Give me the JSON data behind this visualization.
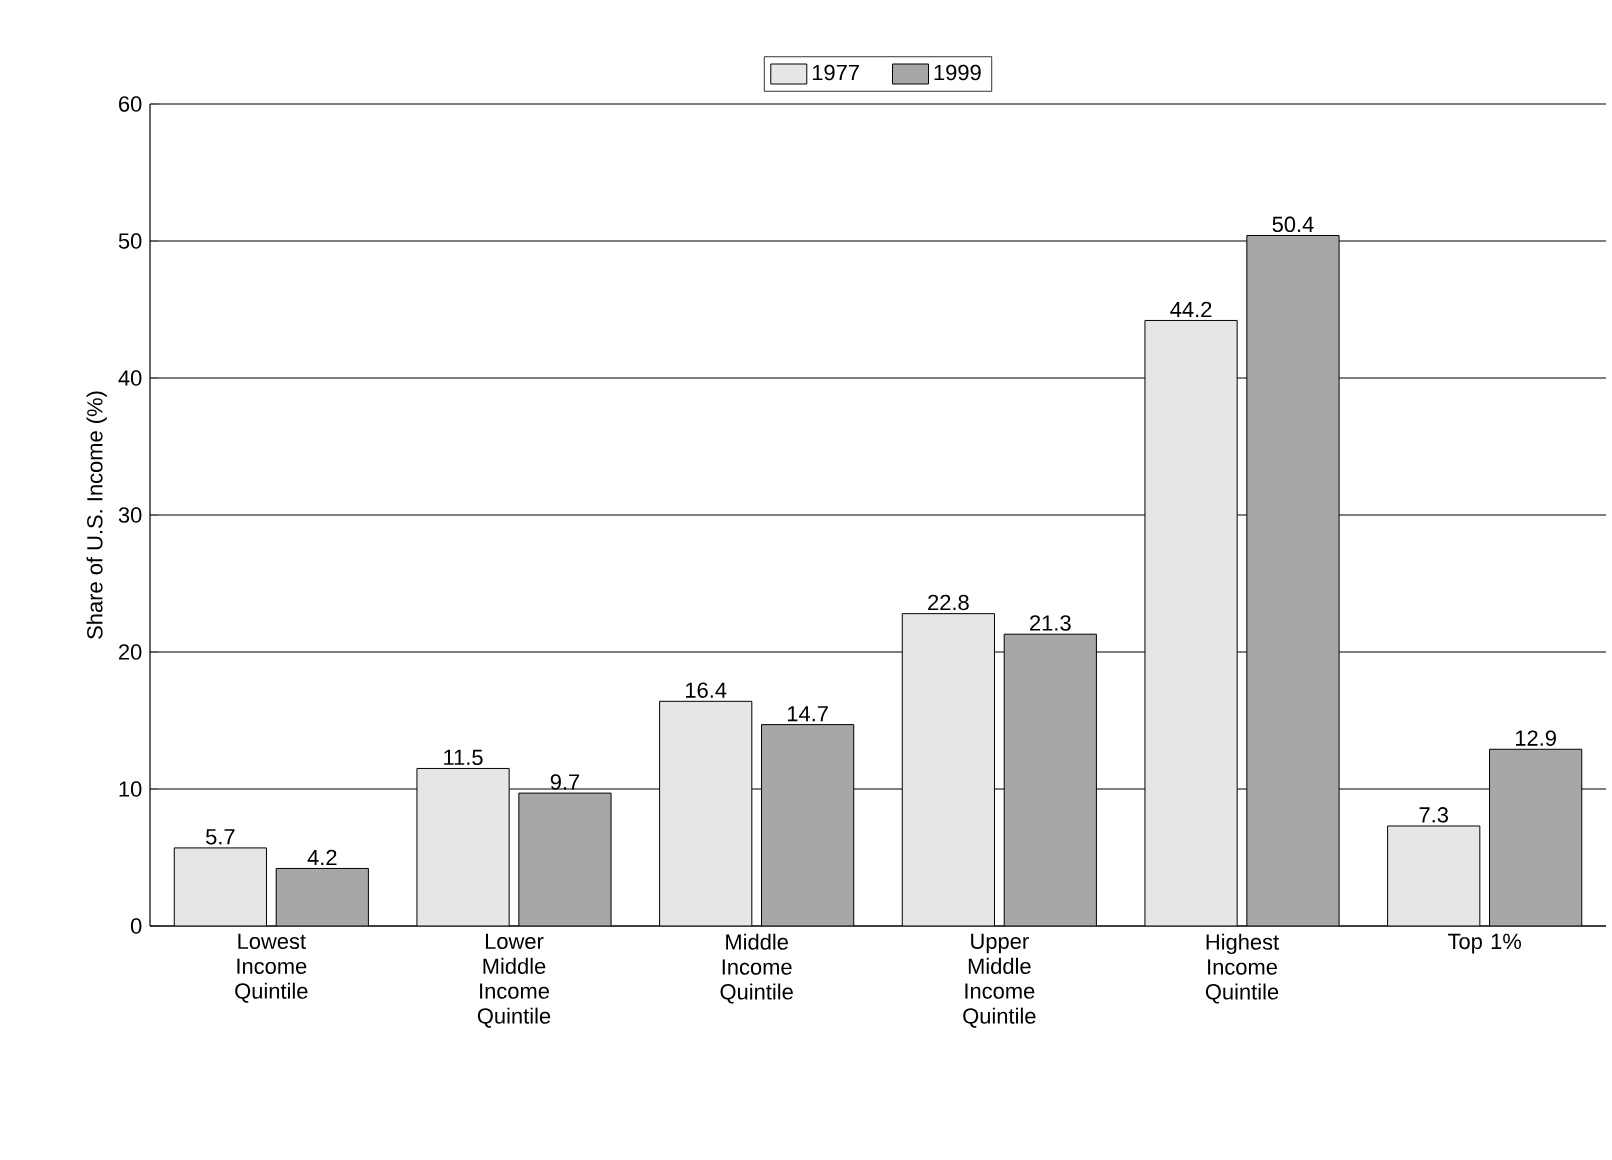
{
  "chart_data": {
    "type": "bar",
    "ylabel": "Share of U.S. Income (%)",
    "categories": [
      "Lowest Income Quintile",
      "Lower Middle Income Quintile",
      "Middle Income Quintile",
      "Upper Middle Income Quintile",
      "Highest Income Quintile",
      "Top 1%"
    ],
    "series": [
      {
        "name": "1977",
        "color": "#e6e6e6",
        "values": [
          5.7,
          11.5,
          16.4,
          22.8,
          44.2,
          7.3
        ]
      },
      {
        "name": "1999",
        "color": "#a7a7a9",
        "values": [
          4.2,
          9.7,
          14.7,
          21.3,
          50.4,
          12.9
        ]
      }
    ],
    "ylim": [
      0,
      60
    ],
    "yticks": [
      0,
      10,
      20,
      30,
      40,
      50,
      60
    ],
    "grid": "y",
    "legend": "top",
    "data_labels": true
  }
}
